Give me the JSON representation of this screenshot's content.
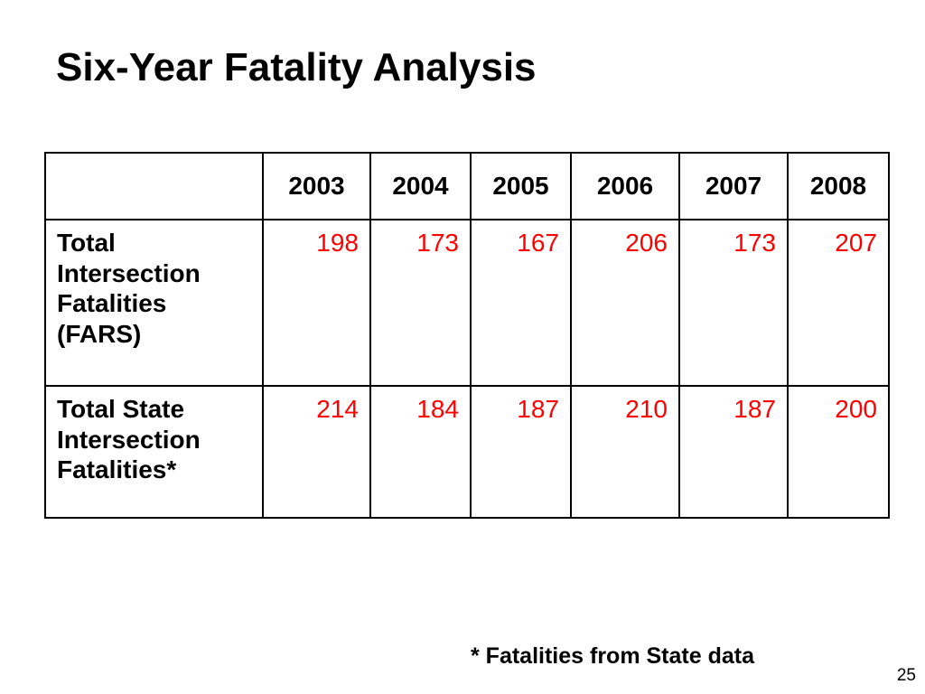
{
  "slide": {
    "title": "Six-Year Fatality Analysis",
    "footnote": "* Fatalities from State data",
    "page_number": "25"
  },
  "table": {
    "corner_label": "",
    "years": [
      "2003",
      "2004",
      "2005",
      "2006",
      "2007",
      "2008"
    ],
    "rows": [
      {
        "label_lines": [
          "Total",
          "Intersection",
          "Fatalities",
          "(FARS)"
        ],
        "values": [
          "198",
          "173",
          "167",
          "206",
          "173",
          "207"
        ]
      },
      {
        "label_lines": [
          "Total State",
          "Intersection",
          "Fatalities*"
        ],
        "values": [
          "214",
          "184",
          "187",
          "210",
          "187",
          "200"
        ]
      }
    ]
  },
  "colors": {
    "value_text": "#ff0000",
    "label_text": "#000000",
    "border": "#000000",
    "background": "#ffffff"
  }
}
